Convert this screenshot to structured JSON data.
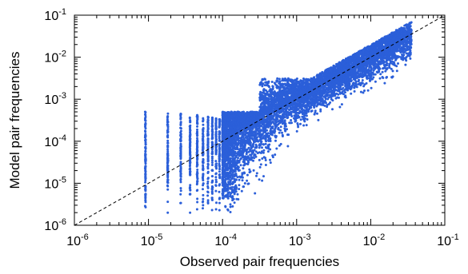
{
  "chart_data": {
    "type": "scatter",
    "xlabel": "Observed pair frequencies",
    "ylabel": "Model pair frequencies",
    "x_scale": "log",
    "y_scale": "log",
    "xlim": [
      1e-06,
      0.1
    ],
    "ylim": [
      1e-06,
      0.1
    ],
    "tick_base": "10",
    "x_tick_exponents": [
      "-6",
      "-5",
      "-4",
      "-3",
      "-2",
      "-1"
    ],
    "y_tick_exponents": [
      "-6",
      "-5",
      "-4",
      "-3",
      "-2",
      "-1"
    ],
    "grid": false,
    "reference_line": {
      "style": "dashed",
      "color": "#000000",
      "from": [
        1e-06,
        1e-06
      ],
      "to": [
        0.1,
        0.1
      ]
    },
    "marker_color": "#2b5fd9",
    "point_count_approx": 9000,
    "low_count_columns_x": [
      9.1e-06,
      1.82e-05,
      2.73e-05,
      3.64e-05,
      4.55e-05,
      5.45e-05,
      6.36e-05,
      7.27e-05,
      8.18e-05,
      9.09e-05,
      0.0001,
      0.000109,
      0.000118,
      0.000127,
      0.000136,
      0.000145
    ],
    "upper_envelope_y_at_low_x": 0.0005,
    "lower_floor_y": 2e-06,
    "max_point": [
      0.03,
      0.025
    ],
    "series": [
      {
        "name": "",
        "description_of_shape": "dense cloud around y=x widening at low observed frequencies"
      }
    ]
  }
}
